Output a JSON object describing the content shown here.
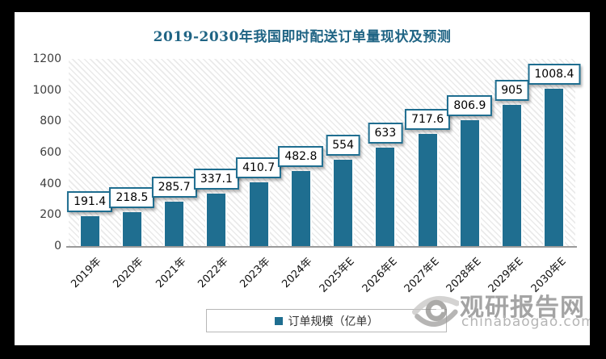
{
  "title": {
    "text": "2019-2030年我国即时配送订单量现状及预测",
    "color": "#1f6484"
  },
  "chart_data": {
    "type": "bar",
    "title": "2019-2030年我国即时配送订单量现状及预测",
    "categories": [
      "2019年",
      "2020年",
      "2021年",
      "2022年",
      "2023年",
      "2024年",
      "2025年E",
      "2026年E",
      "2027年E",
      "2028年E",
      "2029年E",
      "2030年E"
    ],
    "series": [
      {
        "name": "订单规模（亿单）",
        "values": [
          191.4,
          218.5,
          285.7,
          337.1,
          410.7,
          482.8,
          554,
          633,
          717.6,
          806.9,
          905,
          1008.4
        ],
        "color": "#1f6e90"
      }
    ],
    "data_labels_visible": true,
    "xlabel": "",
    "ylabel": "",
    "ylim": [
      0,
      1200
    ],
    "yticks": [
      0,
      200,
      400,
      600,
      800,
      1000,
      1200
    ],
    "grid": false,
    "legend_position": "bottom",
    "plot_background": "diagonal-hatch",
    "x_tick_rotation": 45
  },
  "legend": {
    "label": "订单规模（亿单）"
  },
  "watermark": {
    "logo": "eye-logo",
    "brand": "观研报告网",
    "site": "chinabaogao.com"
  },
  "colors": {
    "bar": "#1f6e90",
    "title": "#1f6484",
    "axis_line": "#9a9a9a",
    "data_label_border": "#1f6e90",
    "frame_background": "#ffffff",
    "outer_background": "#000000",
    "watermark_gray": "#a4a4a4"
  }
}
